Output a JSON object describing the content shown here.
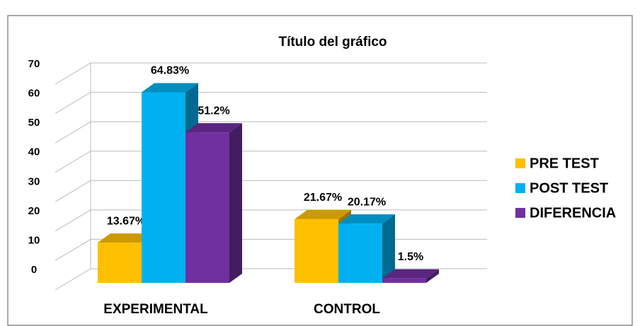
{
  "chart_data": {
    "type": "bar3d",
    "title": "Título del gráfico",
    "categories": [
      "EXPERIMENTAL",
      "CONTROL"
    ],
    "series": [
      {
        "name": "PRE TEST",
        "color": "#ffc000",
        "values": [
          13.67,
          21.67
        ],
        "value_labels": [
          "13.67%",
          "21.67%"
        ]
      },
      {
        "name": "POST TEST",
        "color": "#00b0f0",
        "values": [
          64.83,
          20.17
        ],
        "value_labels": [
          "64.83%",
          "20.17%"
        ]
      },
      {
        "name": "DIFERENCIA",
        "color": "#7030a0",
        "values": [
          51.2,
          1.5
        ],
        "value_labels": [
          "51.2%",
          "1.5%"
        ]
      }
    ],
    "ylim": [
      0,
      70
    ],
    "yticks": [
      0,
      10,
      20,
      30,
      40,
      50,
      60,
      70
    ],
    "grid": true,
    "legend": "right"
  }
}
